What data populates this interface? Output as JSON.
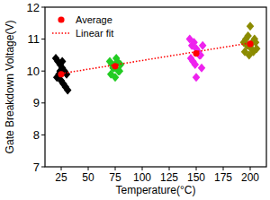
{
  "chart_data": {
    "type": "scatter",
    "x_label": "Temperature(°C)",
    "y_label": "Gate Breakdown Voltage(V)",
    "xlim": [
      10,
      215
    ],
    "xticks": [
      25,
      50,
      75,
      100,
      125,
      150,
      175,
      200
    ],
    "ylim": [
      7,
      12
    ],
    "yticks": [
      7,
      8,
      9,
      10,
      11,
      12
    ],
    "legend": "upper left",
    "series": [
      {
        "color": "#000000",
        "marker": "diamond",
        "x": [
          20,
          22,
          24,
          26,
          28,
          30,
          21,
          23,
          25,
          27,
          29,
          31,
          24,
          26
        ],
        "values": [
          10.4,
          10.3,
          10.2,
          10.1,
          10.0,
          9.9,
          9.8,
          9.9,
          9.7,
          9.6,
          9.5,
          9.4,
          10.0,
          10.3
        ]
      },
      {
        "color": "#22cc22",
        "marker": "diamond",
        "x": [
          70,
          72,
          74,
          76,
          78,
          80,
          71,
          73,
          75,
          77,
          79,
          75
        ],
        "values": [
          10.3,
          10.2,
          10.1,
          10.4,
          10.0,
          10.2,
          9.9,
          10.1,
          9.8,
          10.3,
          10.0,
          10.2
        ]
      },
      {
        "color": "#ee22ee",
        "marker": "diamond",
        "x": [
          144,
          146,
          148,
          150,
          152,
          154,
          156,
          145,
          147,
          149,
          151,
          153,
          155,
          150
        ],
        "values": [
          11.0,
          10.8,
          10.9,
          10.7,
          10.6,
          10.5,
          10.8,
          10.4,
          10.3,
          10.2,
          10.6,
          10.5,
          10.1,
          9.8
        ]
      },
      {
        "color": "#8b8b00",
        "marker": "diamond",
        "x": [
          194,
          196,
          198,
          200,
          202,
          204,
          206,
          195,
          197,
          199,
          201,
          203,
          205,
          200
        ],
        "values": [
          10.9,
          11.0,
          11.1,
          10.8,
          10.9,
          11.0,
          10.7,
          10.6,
          10.8,
          10.5,
          10.7,
          10.6,
          10.9,
          11.4
        ]
      },
      {
        "name": "Average",
        "type": "scatter",
        "color": "#ff0000",
        "marker": "circle",
        "x": [
          25,
          75,
          150,
          200
        ],
        "values": [
          9.9,
          10.15,
          10.55,
          10.85
        ]
      },
      {
        "name": "Linear fit",
        "type": "line",
        "color": "#ff0000",
        "line_style": "dotted",
        "x": [
          25,
          200
        ],
        "values": [
          9.92,
          10.88
        ]
      }
    ]
  }
}
